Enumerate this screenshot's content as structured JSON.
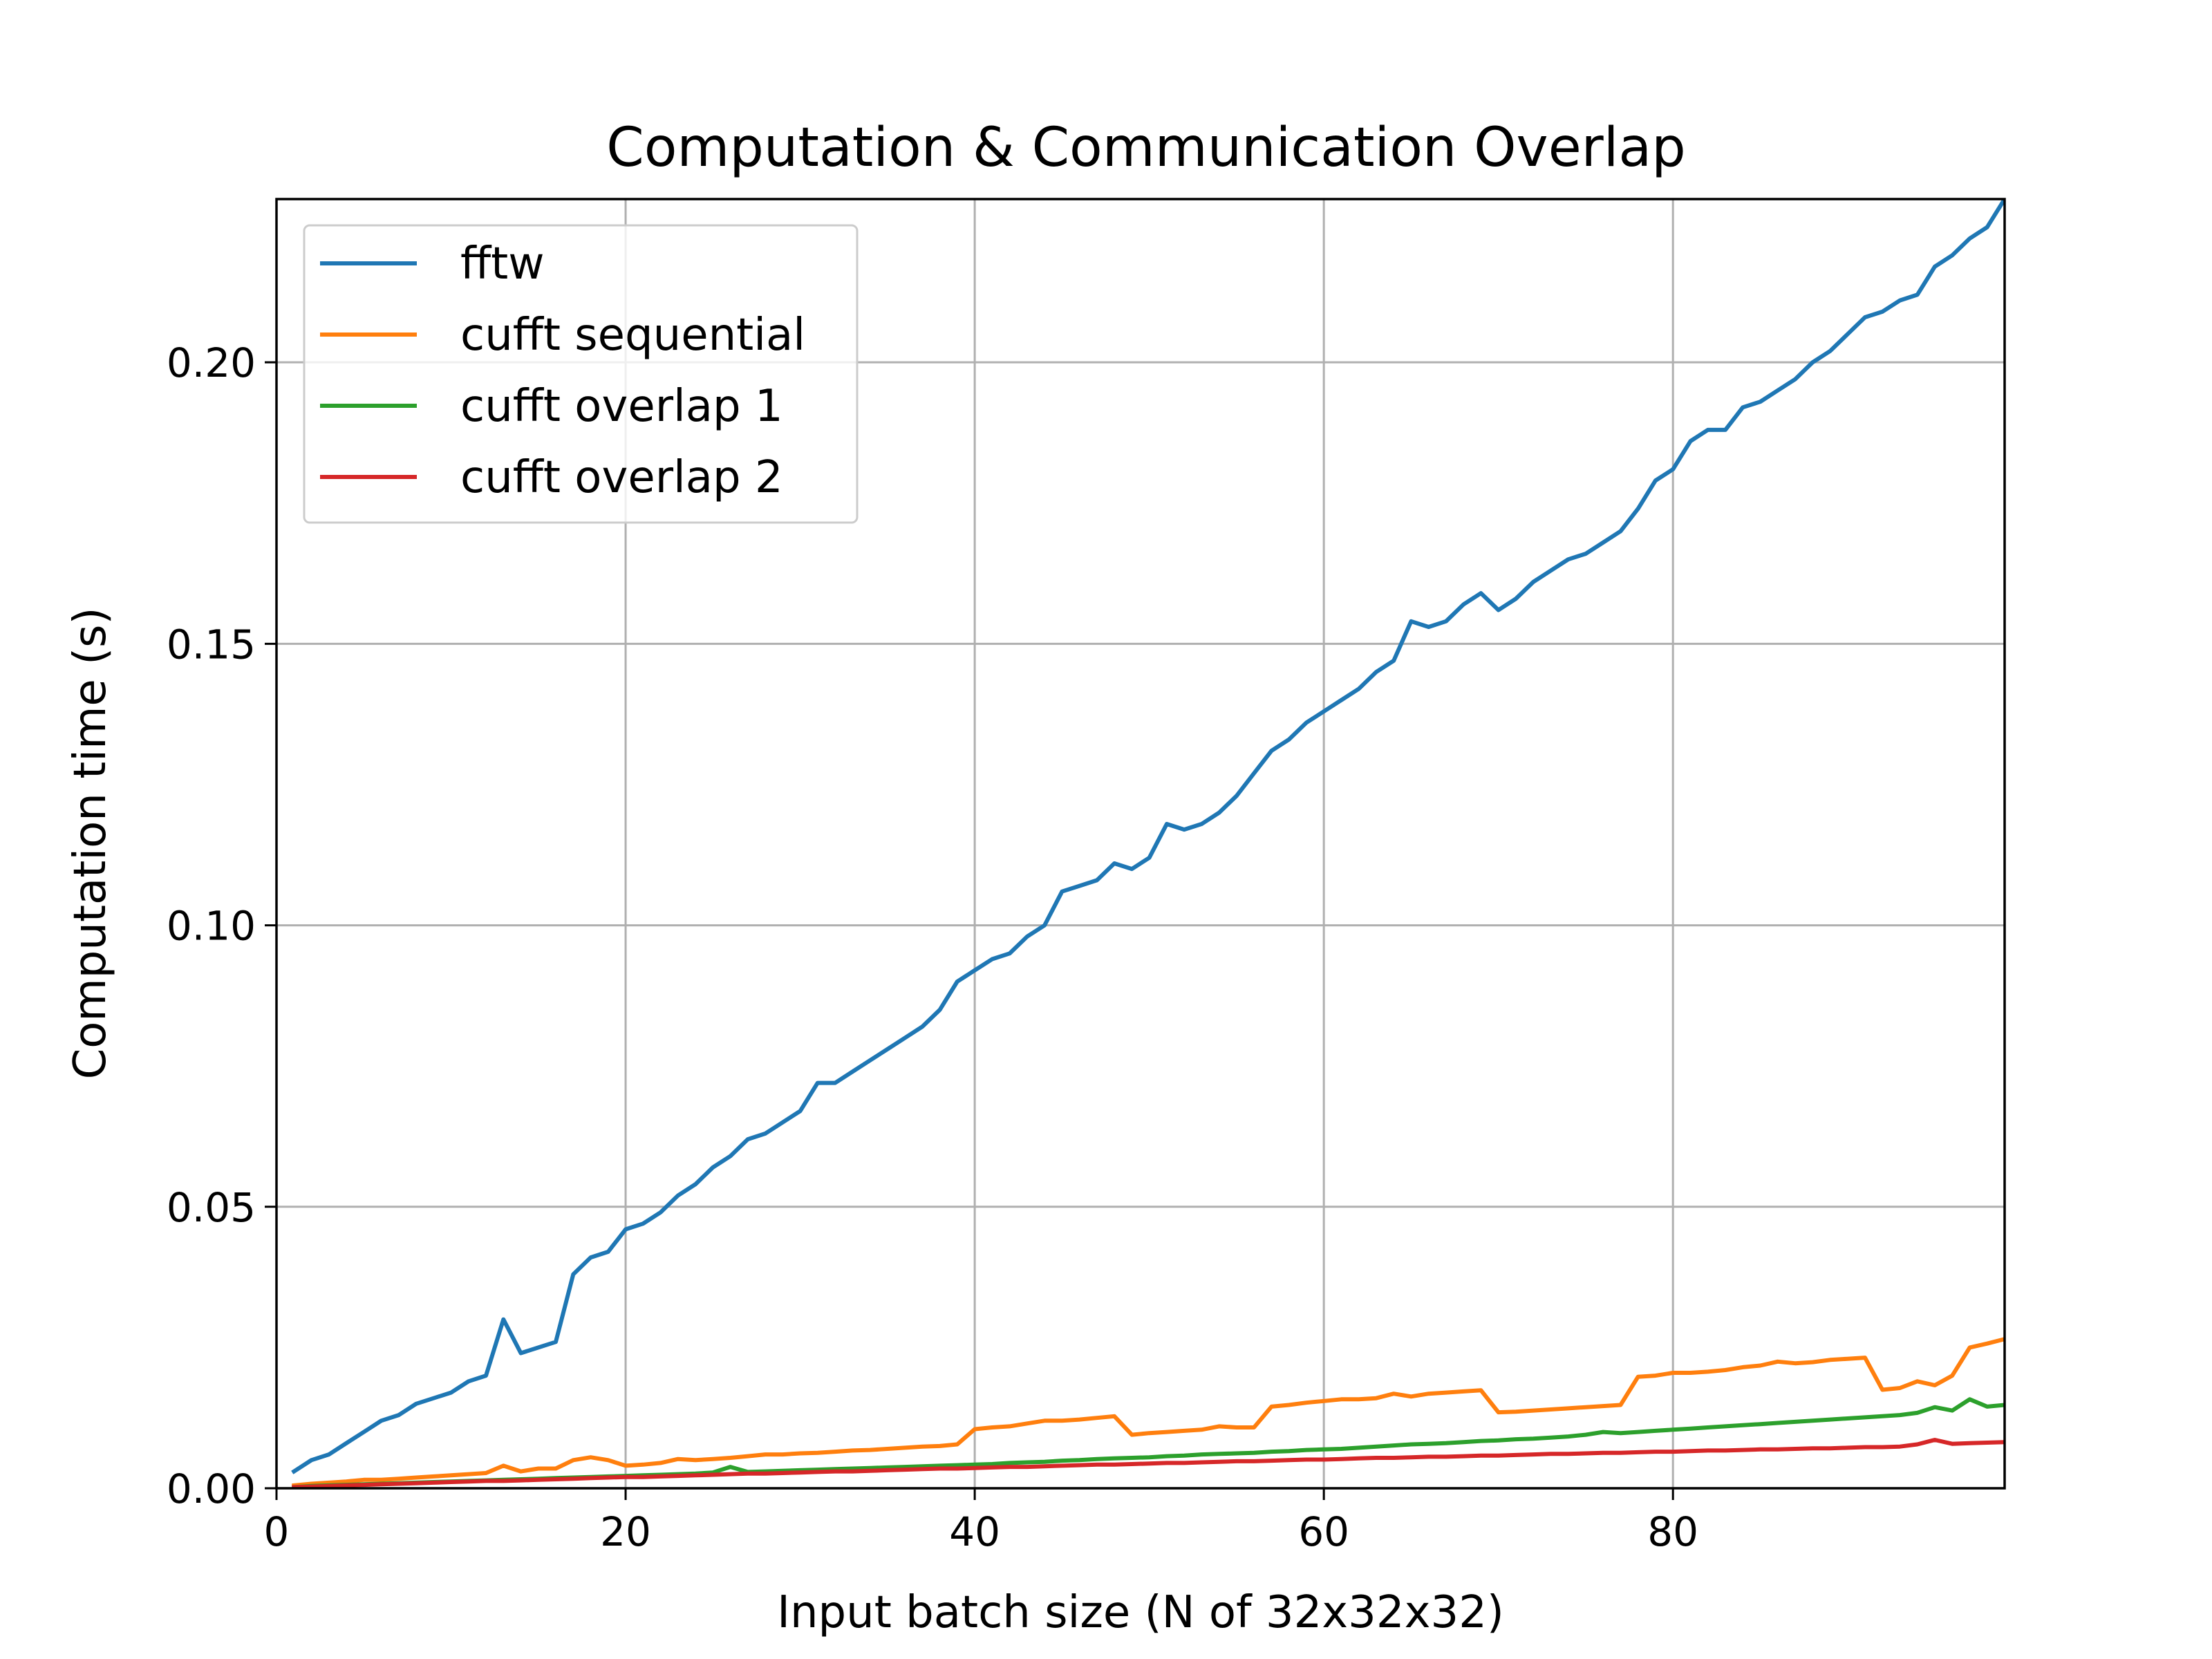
{
  "chart_data": {
    "type": "line",
    "title": "Computation & Communication Overlap",
    "xlabel": "Input batch size (N of 32x32x32)",
    "ylabel": "Computation time (s)",
    "xlim": [
      0,
      99
    ],
    "ylim": [
      0,
      0.229
    ],
    "xticks": [
      0,
      20,
      40,
      60,
      80
    ],
    "yticks": [
      0.0,
      0.05,
      0.1,
      0.15,
      0.2
    ],
    "xtick_labels": [
      "0",
      "20",
      "40",
      "60",
      "80"
    ],
    "ytick_labels": [
      "0.00",
      "0.05",
      "0.10",
      "0.15",
      "0.20"
    ],
    "grid": true,
    "legend_position": "upper-left",
    "series": [
      {
        "name": "fftw",
        "color": "#1f77b4",
        "x": [
          1,
          2,
          3,
          4,
          5,
          6,
          7,
          8,
          9,
          10,
          11,
          12,
          13,
          14,
          15,
          16,
          17,
          18,
          19,
          20,
          21,
          22,
          23,
          24,
          25,
          26,
          27,
          28,
          29,
          30,
          31,
          32,
          33,
          34,
          35,
          36,
          37,
          38,
          39,
          40,
          41,
          42,
          43,
          44,
          45,
          46,
          47,
          48,
          49,
          50,
          51,
          52,
          53,
          54,
          55,
          56,
          57,
          58,
          59,
          60,
          61,
          62,
          63,
          64,
          65,
          66,
          67,
          68,
          69,
          70,
          71,
          72,
          73,
          74,
          75,
          76,
          77,
          78,
          79,
          80,
          81,
          82,
          83,
          84,
          85,
          86,
          87,
          88,
          89,
          90,
          91,
          92,
          93,
          94,
          95,
          96,
          97,
          98,
          99
        ],
        "y": [
          0.003,
          0.005,
          0.006,
          0.008,
          0.01,
          0.012,
          0.013,
          0.015,
          0.016,
          0.017,
          0.019,
          0.02,
          0.03,
          0.024,
          0.025,
          0.026,
          0.038,
          0.041,
          0.042,
          0.046,
          0.047,
          0.049,
          0.052,
          0.054,
          0.057,
          0.059,
          0.062,
          0.063,
          0.065,
          0.067,
          0.072,
          0.072,
          0.074,
          0.076,
          0.078,
          0.08,
          0.082,
          0.085,
          0.09,
          0.092,
          0.094,
          0.095,
          0.098,
          0.1,
          0.106,
          0.107,
          0.108,
          0.111,
          0.11,
          0.112,
          0.118,
          0.117,
          0.118,
          0.12,
          0.123,
          0.127,
          0.131,
          0.133,
          0.136,
          0.138,
          0.14,
          0.142,
          0.145,
          0.147,
          0.154,
          0.153,
          0.154,
          0.157,
          0.159,
          0.156,
          0.158,
          0.161,
          0.163,
          0.165,
          0.166,
          0.168,
          0.17,
          0.174,
          0.179,
          0.181,
          0.186,
          0.188,
          0.188,
          0.192,
          0.193,
          0.195,
          0.197,
          0.2,
          0.202,
          0.205,
          0.208,
          0.209,
          0.211,
          0.212,
          0.217,
          0.219,
          0.222,
          0.224,
          0.229
        ]
      },
      {
        "name": "cufft sequential",
        "color": "#ff7f0e",
        "x": [
          1,
          2,
          3,
          4,
          5,
          6,
          7,
          8,
          9,
          10,
          11,
          12,
          13,
          14,
          15,
          16,
          17,
          18,
          19,
          20,
          21,
          22,
          23,
          24,
          25,
          26,
          27,
          28,
          29,
          30,
          31,
          32,
          33,
          34,
          35,
          36,
          37,
          38,
          39,
          40,
          41,
          42,
          43,
          44,
          45,
          46,
          47,
          48,
          49,
          50,
          51,
          52,
          53,
          54,
          55,
          56,
          57,
          58,
          59,
          60,
          61,
          62,
          63,
          64,
          65,
          66,
          67,
          68,
          69,
          70,
          71,
          72,
          73,
          74,
          75,
          76,
          77,
          78,
          79,
          80,
          81,
          82,
          83,
          84,
          85,
          86,
          87,
          88,
          89,
          90,
          91,
          92,
          93,
          94,
          95,
          96,
          97,
          98,
          99
        ],
        "y": [
          0.0005,
          0.0008,
          0.001,
          0.0012,
          0.0015,
          0.0015,
          0.0017,
          0.0019,
          0.0021,
          0.0023,
          0.0025,
          0.0027,
          0.004,
          0.003,
          0.0035,
          0.0035,
          0.005,
          0.0055,
          0.005,
          0.004,
          0.0042,
          0.0045,
          0.0052,
          0.005,
          0.0052,
          0.0054,
          0.0057,
          0.006,
          0.006,
          0.0062,
          0.0063,
          0.0065,
          0.0067,
          0.0068,
          0.007,
          0.0072,
          0.0074,
          0.0075,
          0.0078,
          0.0105,
          0.0108,
          0.011,
          0.0115,
          0.012,
          0.012,
          0.0122,
          0.0125,
          0.0128,
          0.0095,
          0.0098,
          0.01,
          0.0102,
          0.0104,
          0.011,
          0.0108,
          0.0108,
          0.0145,
          0.0148,
          0.0152,
          0.0155,
          0.0158,
          0.0158,
          0.016,
          0.0168,
          0.0163,
          0.0168,
          0.017,
          0.0172,
          0.0174,
          0.0135,
          0.0136,
          0.0138,
          0.014,
          0.0142,
          0.0144,
          0.0146,
          0.0148,
          0.0198,
          0.02,
          0.0205,
          0.0205,
          0.0207,
          0.021,
          0.0215,
          0.0218,
          0.0225,
          0.0222,
          0.0224,
          0.0228,
          0.023,
          0.0232,
          0.0175,
          0.0178,
          0.019,
          0.0183,
          0.02,
          0.025,
          0.0257,
          0.0265
        ]
      },
      {
        "name": "cufft overlap 1",
        "color": "#2ca02c",
        "x": [
          1,
          2,
          3,
          4,
          5,
          6,
          7,
          8,
          9,
          10,
          11,
          12,
          13,
          14,
          15,
          16,
          17,
          18,
          19,
          20,
          21,
          22,
          23,
          24,
          25,
          26,
          27,
          28,
          29,
          30,
          31,
          32,
          33,
          34,
          35,
          36,
          37,
          38,
          39,
          40,
          41,
          42,
          43,
          44,
          45,
          46,
          47,
          48,
          49,
          50,
          51,
          52,
          53,
          54,
          55,
          56,
          57,
          58,
          59,
          60,
          61,
          62,
          63,
          64,
          65,
          66,
          67,
          68,
          69,
          70,
          71,
          72,
          73,
          74,
          75,
          76,
          77,
          78,
          79,
          80,
          81,
          82,
          83,
          84,
          85,
          86,
          87,
          88,
          89,
          90,
          91,
          92,
          93,
          94,
          95,
          96,
          97,
          98,
          99
        ],
        "y": [
          0.0002,
          0.0004,
          0.0005,
          0.0006,
          0.0007,
          0.0008,
          0.0009,
          0.001,
          0.0011,
          0.0012,
          0.0013,
          0.0014,
          0.0015,
          0.0016,
          0.0017,
          0.0018,
          0.0019,
          0.002,
          0.0021,
          0.0022,
          0.0023,
          0.0024,
          0.0025,
          0.0026,
          0.0028,
          0.0038,
          0.0029,
          0.003,
          0.0031,
          0.0032,
          0.0033,
          0.0034,
          0.0035,
          0.0036,
          0.0037,
          0.0038,
          0.0039,
          0.004,
          0.0041,
          0.0042,
          0.0043,
          0.0045,
          0.0046,
          0.0047,
          0.0049,
          0.005,
          0.0052,
          0.0053,
          0.0054,
          0.0055,
          0.0057,
          0.0058,
          0.006,
          0.0061,
          0.0062,
          0.0063,
          0.0065,
          0.0066,
          0.0068,
          0.0069,
          0.007,
          0.0072,
          0.0074,
          0.0076,
          0.0078,
          0.0079,
          0.008,
          0.0082,
          0.0084,
          0.0085,
          0.0087,
          0.0088,
          0.009,
          0.0092,
          0.0095,
          0.01,
          0.0098,
          0.01,
          0.0102,
          0.0104,
          0.0106,
          0.0108,
          0.011,
          0.0112,
          0.0114,
          0.0116,
          0.0118,
          0.012,
          0.0122,
          0.0124,
          0.0126,
          0.0128,
          0.013,
          0.0134,
          0.0144,
          0.0138,
          0.0158,
          0.0145,
          0.0148
        ]
      },
      {
        "name": "cufft overlap 2",
        "color": "#d62728",
        "x": [
          1,
          2,
          3,
          4,
          5,
          6,
          7,
          8,
          9,
          10,
          11,
          12,
          13,
          14,
          15,
          16,
          17,
          18,
          19,
          20,
          21,
          22,
          23,
          24,
          25,
          26,
          27,
          28,
          29,
          30,
          31,
          32,
          33,
          34,
          35,
          36,
          37,
          38,
          39,
          40,
          41,
          42,
          43,
          44,
          45,
          46,
          47,
          48,
          49,
          50,
          51,
          52,
          53,
          54,
          55,
          56,
          57,
          58,
          59,
          60,
          61,
          62,
          63,
          64,
          65,
          66,
          67,
          68,
          69,
          70,
          71,
          72,
          73,
          74,
          75,
          76,
          77,
          78,
          79,
          80,
          81,
          82,
          83,
          84,
          85,
          86,
          87,
          88,
          89,
          90,
          91,
          92,
          93,
          94,
          95,
          96,
          97,
          98,
          99
        ],
        "y": [
          0.0002,
          0.0003,
          0.0004,
          0.0005,
          0.0006,
          0.0007,
          0.0008,
          0.0009,
          0.001,
          0.0011,
          0.0012,
          0.0013,
          0.0013,
          0.0014,
          0.0015,
          0.0016,
          0.0017,
          0.0018,
          0.0019,
          0.002,
          0.002,
          0.0021,
          0.0022,
          0.0023,
          0.0024,
          0.0025,
          0.0026,
          0.0026,
          0.0027,
          0.0028,
          0.0029,
          0.003,
          0.003,
          0.0031,
          0.0032,
          0.0033,
          0.0034,
          0.0035,
          0.0035,
          0.0036,
          0.0037,
          0.0038,
          0.0038,
          0.0039,
          0.004,
          0.0041,
          0.0042,
          0.0042,
          0.0043,
          0.0044,
          0.0045,
          0.0045,
          0.0046,
          0.0047,
          0.0048,
          0.0048,
          0.0049,
          0.005,
          0.0051,
          0.0051,
          0.0052,
          0.0053,
          0.0054,
          0.0054,
          0.0055,
          0.0056,
          0.0056,
          0.0057,
          0.0058,
          0.0058,
          0.0059,
          0.006,
          0.0061,
          0.0061,
          0.0062,
          0.0063,
          0.0063,
          0.0064,
          0.0065,
          0.0065,
          0.0066,
          0.0067,
          0.0067,
          0.0068,
          0.0069,
          0.0069,
          0.007,
          0.0071,
          0.0071,
          0.0072,
          0.0073,
          0.0073,
          0.0074,
          0.0078,
          0.0086,
          0.0079,
          0.008,
          0.0081,
          0.0082
        ]
      }
    ]
  }
}
